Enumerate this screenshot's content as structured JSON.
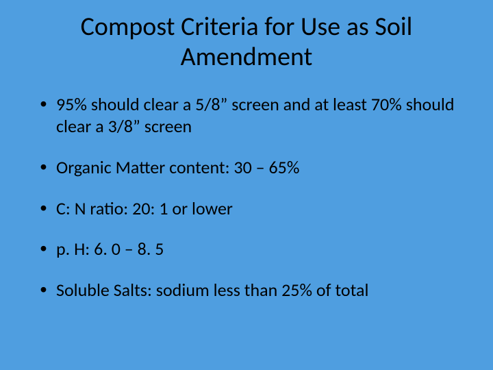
{
  "background_color": "#4f9ee0",
  "text_color": "#000000",
  "font_family": "Calibri, 'Segoe UI', Arial, sans-serif",
  "title": {
    "text": "Compost Criteria for Use as Soil Amendment",
    "fontsize": 38,
    "align": "center"
  },
  "bullets": {
    "fontsize": 26,
    "items": [
      "95%  should clear a 5/8” screen and at least 70% should clear a 3/8” screen",
      "Organic Matter content:  30 – 65%",
      "C: N ratio:  20: 1 or lower",
      "p. H:  6. 0 – 8. 5",
      "Soluble Salts: sodium less than 25% of total"
    ]
  }
}
